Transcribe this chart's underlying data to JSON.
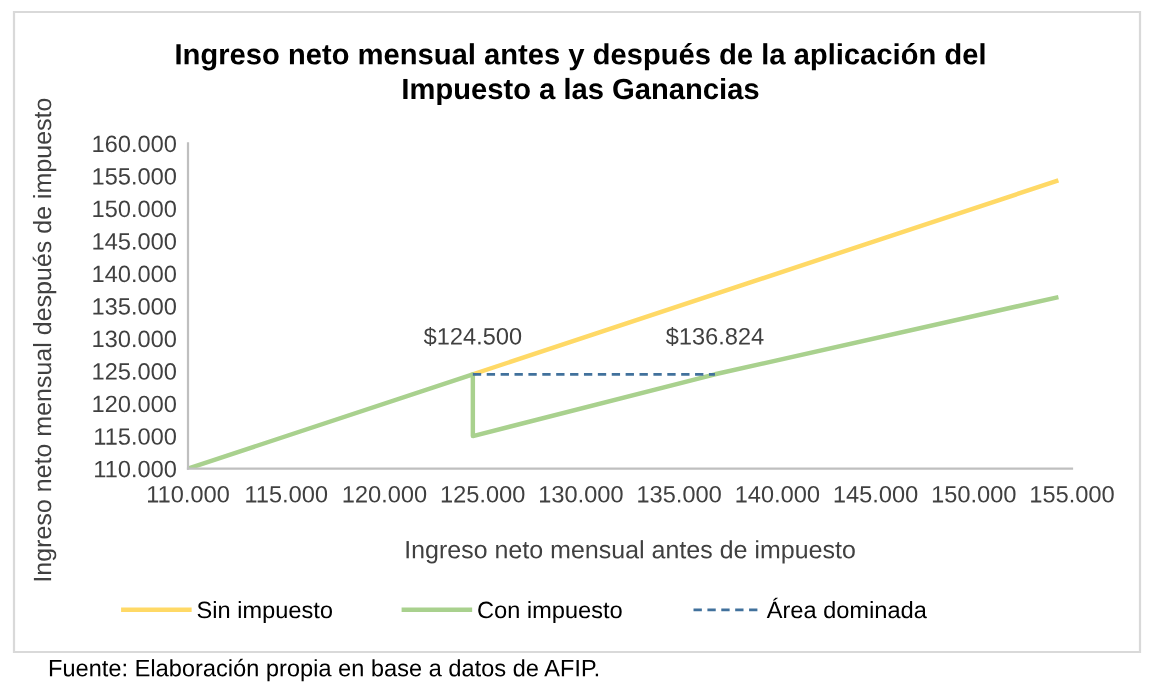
{
  "chart_data": {
    "type": "line",
    "title": "Ingreso neto mensual antes y después de la aplicación del\nImpuesto a las Ganancias",
    "xlabel": "Ingreso neto mensual antes de impuesto",
    "ylabel": "Ingreso neto mensual después de impuesto",
    "xlim": [
      110000,
      155000
    ],
    "ylim": [
      110000,
      160000
    ],
    "xticks": [
      {
        "value": 110000,
        "label": "110.000"
      },
      {
        "value": 115000,
        "label": "115.000"
      },
      {
        "value": 120000,
        "label": "120.000"
      },
      {
        "value": 125000,
        "label": "125.000"
      },
      {
        "value": 130000,
        "label": "130.000"
      },
      {
        "value": 135000,
        "label": "135.000"
      },
      {
        "value": 140000,
        "label": "140.000"
      },
      {
        "value": 145000,
        "label": "145.000"
      },
      {
        "value": 150000,
        "label": "150.000"
      },
      {
        "value": 155000,
        "label": "155.000"
      }
    ],
    "yticks": [
      {
        "value": 110000,
        "label": "110.000"
      },
      {
        "value": 115000,
        "label": "115.000"
      },
      {
        "value": 120000,
        "label": "120.000"
      },
      {
        "value": 125000,
        "label": "125.000"
      },
      {
        "value": 130000,
        "label": "130.000"
      },
      {
        "value": 135000,
        "label": "135.000"
      },
      {
        "value": 140000,
        "label": "140.000"
      },
      {
        "value": 145000,
        "label": "145.000"
      },
      {
        "value": 150000,
        "label": "150.000"
      },
      {
        "value": 155000,
        "label": "155.000"
      },
      {
        "value": 160000,
        "label": "160.000"
      }
    ],
    "legend": "bottom",
    "marker": "none",
    "series": [
      {
        "name": "Sin impuesto",
        "color": "#ffd966",
        "x": [
          124500,
          154200
        ],
        "values": [
          124500,
          154200
        ]
      },
      {
        "name": "Con impuesto",
        "color": "#a9d18e",
        "x": [
          110000,
          124500,
          124500,
          136824,
          154200
        ],
        "values": [
          110000,
          124500,
          115000,
          124500,
          136300
        ]
      },
      {
        "name": "Área dominada",
        "color": "#41719c",
        "line_style": "dashed",
        "x": [
          124500,
          136824
        ],
        "values": [
          124500,
          124500
        ]
      }
    ],
    "annotations": [
      {
        "text": "$124.500",
        "x": 124500,
        "y": 124500
      },
      {
        "text": "$136.824",
        "x": 136824,
        "y": 124500
      },
      "Fuente: Elaboración propia en base a datos de AFIP."
    ]
  }
}
